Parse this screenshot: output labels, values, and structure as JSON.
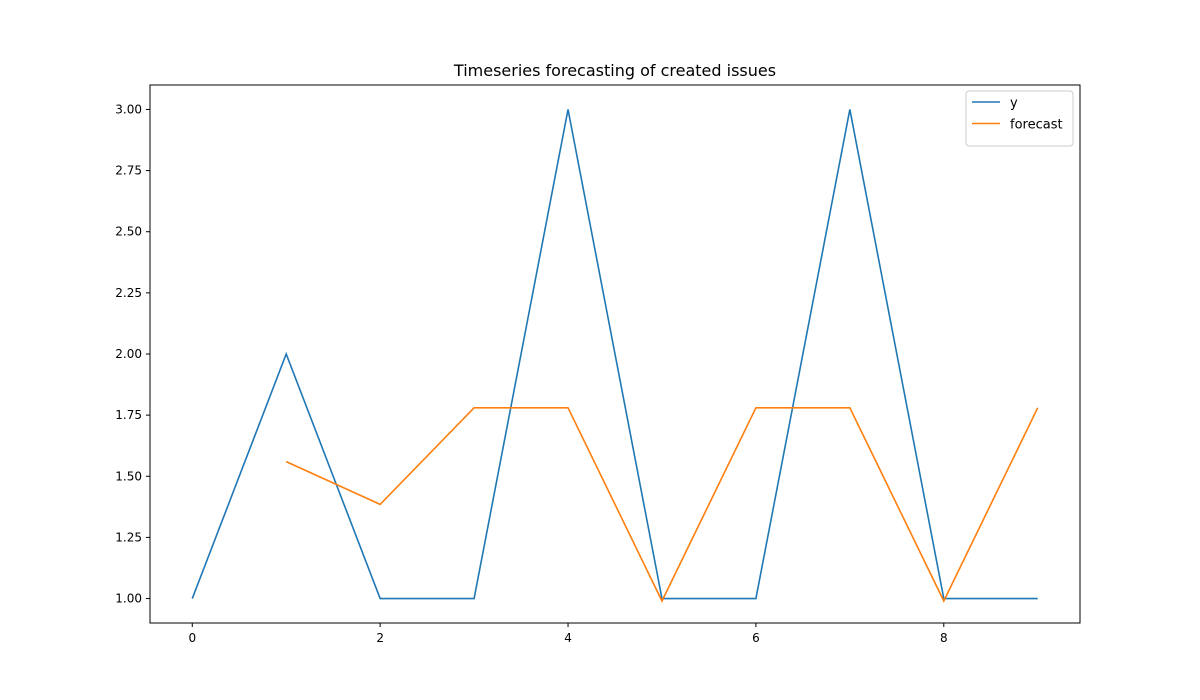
{
  "chart_data": {
    "type": "line",
    "title": "Timeseries forecasting of created issues",
    "xlabel": "",
    "ylabel": "",
    "xlim": [
      -0.45,
      9.45
    ],
    "ylim": [
      0.9,
      3.1
    ],
    "x_ticks": [
      0,
      2,
      4,
      6,
      8
    ],
    "x_tick_labels": [
      "0",
      "2",
      "4",
      "6",
      "8"
    ],
    "y_ticks": [
      1.0,
      1.25,
      1.5,
      1.75,
      2.0,
      2.25,
      2.5,
      2.75,
      3.0
    ],
    "y_tick_labels": [
      "1.00",
      "1.25",
      "1.50",
      "1.75",
      "2.00",
      "2.25",
      "2.50",
      "2.75",
      "3.00"
    ],
    "grid": false,
    "legend_position": "top-right",
    "series": [
      {
        "name": "y",
        "color": "#1f77b4",
        "x": [
          0,
          1,
          2,
          3,
          4,
          5,
          6,
          7,
          8,
          9
        ],
        "values": [
          1,
          2,
          1,
          1,
          3,
          1,
          1,
          3,
          1,
          1
        ]
      },
      {
        "name": "forecast",
        "color": "#ff7f0e",
        "x": [
          1,
          2,
          3,
          4,
          5,
          6,
          7,
          8,
          9
        ],
        "values": [
          1.56,
          1.385,
          1.78,
          1.78,
          0.99,
          1.78,
          1.78,
          0.99,
          1.78
        ]
      }
    ]
  }
}
